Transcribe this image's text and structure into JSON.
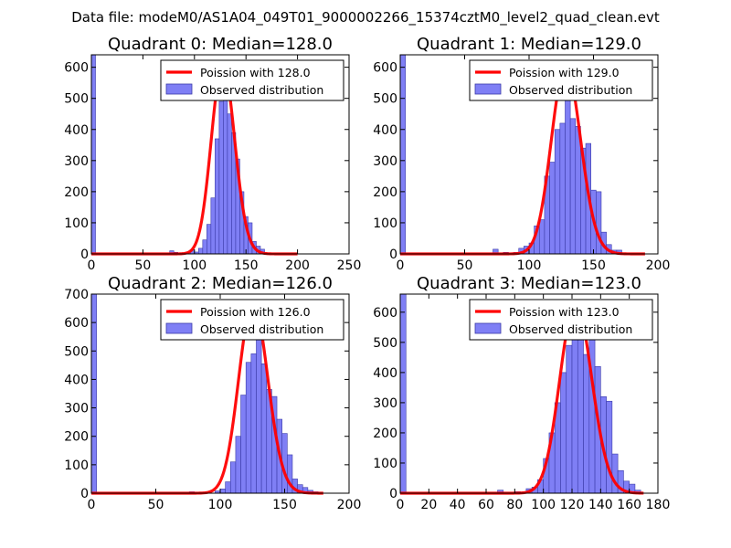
{
  "figure": {
    "suptitle": "Data file: modeM0/AS1A04_049T01_9000002266_15374cztM0_level2_quad_clean.evt"
  },
  "colors": {
    "hist_fill": "#7f7ff5",
    "hist_edge": "#3a3aa8",
    "poisson_line": "#ff0000",
    "axes": "#000000"
  },
  "legend_labels": {
    "observed": "Observed distribution"
  },
  "chart_data": [
    {
      "type": "bar",
      "title": "Quadrant 0: Median=128.0",
      "legend_poisson": "Poission with 128.0",
      "legend_observed": "Observed distribution",
      "xlim": [
        0,
        250
      ],
      "ylim": [
        0,
        640
      ],
      "xticks": [
        0,
        50,
        100,
        150,
        200,
        250
      ],
      "yticks": [
        0,
        100,
        200,
        300,
        400,
        500,
        600
      ],
      "bin_width": 4,
      "hist": [
        [
          0,
          640
        ],
        [
          76,
          10
        ],
        [
          80,
          5
        ],
        [
          88,
          3
        ],
        [
          92,
          5
        ],
        [
          96,
          13
        ],
        [
          100,
          6
        ],
        [
          104,
          18
        ],
        [
          108,
          45
        ],
        [
          112,
          95
        ],
        [
          116,
          180
        ],
        [
          120,
          370
        ],
        [
          124,
          490
        ],
        [
          128,
          540
        ],
        [
          132,
          450
        ],
        [
          136,
          390
        ],
        [
          140,
          305
        ],
        [
          144,
          200
        ],
        [
          148,
          120
        ],
        [
          152,
          100
        ],
        [
          156,
          40
        ],
        [
          160,
          25
        ],
        [
          164,
          15
        ],
        [
          168,
          3
        ]
      ],
      "poisson": {
        "mu": 128,
        "peak": 608,
        "range": [
          0,
          200
        ]
      }
    },
    {
      "type": "bar",
      "title": "Quadrant 1: Median=129.0",
      "legend_poisson": "Poission with 129.0",
      "legend_observed": "Observed distribution",
      "xlim": [
        0,
        200
      ],
      "ylim": [
        0,
        640
      ],
      "xticks": [
        0,
        50,
        100,
        150,
        200
      ],
      "yticks": [
        0,
        100,
        200,
        300,
        400,
        500,
        600
      ],
      "bin_width": 4,
      "hist": [
        [
          0,
          640
        ],
        [
          72,
          15
        ],
        [
          80,
          5
        ],
        [
          88,
          5
        ],
        [
          92,
          18
        ],
        [
          96,
          25
        ],
        [
          100,
          35
        ],
        [
          104,
          90
        ],
        [
          108,
          110
        ],
        [
          112,
          250
        ],
        [
          116,
          295
        ],
        [
          120,
          400
        ],
        [
          124,
          420
        ],
        [
          128,
          560
        ],
        [
          132,
          435
        ],
        [
          136,
          410
        ],
        [
          140,
          340
        ],
        [
          144,
          355
        ],
        [
          148,
          205
        ],
        [
          152,
          200
        ],
        [
          156,
          70
        ],
        [
          160,
          30
        ],
        [
          164,
          12
        ],
        [
          168,
          12
        ]
      ],
      "poisson": {
        "mu": 129,
        "peak": 605,
        "range": [
          0,
          190
        ]
      }
    },
    {
      "type": "bar",
      "title": "Quadrant 2: Median=126.0",
      "legend_poisson": "Poission with 126.0",
      "legend_observed": "Observed distribution",
      "xlim": [
        0,
        200
      ],
      "ylim": [
        0,
        700
      ],
      "xticks": [
        0,
        50,
        100,
        150,
        200
      ],
      "yticks": [
        0,
        100,
        200,
        300,
        400,
        500,
        600,
        700
      ],
      "bin_width": 4,
      "hist": [
        [
          0,
          700
        ],
        [
          76,
          5
        ],
        [
          96,
          8
        ],
        [
          100,
          15
        ],
        [
          104,
          40
        ],
        [
          108,
          110
        ],
        [
          112,
          200
        ],
        [
          116,
          345
        ],
        [
          120,
          460
        ],
        [
          124,
          490
        ],
        [
          128,
          590
        ],
        [
          132,
          455
        ],
        [
          136,
          365
        ],
        [
          140,
          340
        ],
        [
          144,
          260
        ],
        [
          148,
          210
        ],
        [
          152,
          135
        ],
        [
          156,
          50
        ],
        [
          160,
          30
        ],
        [
          164,
          20
        ],
        [
          168,
          10
        ],
        [
          172,
          5
        ]
      ],
      "poisson": {
        "mu": 126,
        "peak": 670,
        "range": [
          0,
          180
        ]
      }
    },
    {
      "type": "bar",
      "title": "Quadrant 3: Median=123.0",
      "legend_poisson": "Poission with 123.0",
      "legend_observed": "Observed distribution",
      "xlim": [
        0,
        180
      ],
      "ylim": [
        0,
        660
      ],
      "xticks": [
        0,
        20,
        40,
        60,
        80,
        100,
        120,
        140,
        160,
        180
      ],
      "yticks": [
        0,
        100,
        200,
        300,
        400,
        500,
        600
      ],
      "bin_width": 4,
      "hist": [
        [
          0,
          660
        ],
        [
          68,
          10
        ],
        [
          80,
          5
        ],
        [
          88,
          15
        ],
        [
          92,
          20
        ],
        [
          96,
          45
        ],
        [
          100,
          115
        ],
        [
          104,
          200
        ],
        [
          108,
          300
        ],
        [
          112,
          400
        ],
        [
          116,
          490
        ],
        [
          120,
          545
        ],
        [
          124,
          600
        ],
        [
          128,
          460
        ],
        [
          132,
          540
        ],
        [
          136,
          420
        ],
        [
          140,
          320
        ],
        [
          144,
          305
        ],
        [
          148,
          130
        ],
        [
          152,
          75
        ],
        [
          156,
          40
        ],
        [
          160,
          30
        ],
        [
          164,
          10
        ]
      ],
      "poisson": {
        "mu": 123,
        "peak": 630,
        "range": [
          0,
          170
        ]
      }
    }
  ]
}
